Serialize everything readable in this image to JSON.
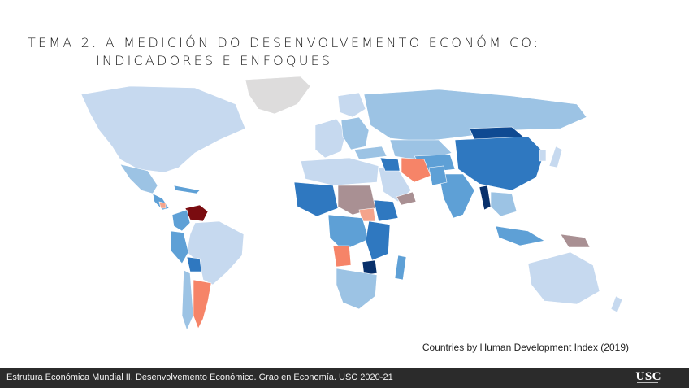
{
  "slide": {
    "title_line1": "TEMA 2. A MEDICIÓN DO DESENVOLVEMENTO ECONÓMICO:",
    "title_line2": "INDICADORES E ENFOQUES"
  },
  "map": {
    "caption": "Countries by Human Development Index (2019)",
    "colors": {
      "very_high": "#c6d9ef",
      "high": "#9cc3e4",
      "medium_high": "#5ea0d6",
      "medium": "#2f78c0",
      "low": "#0f4a92",
      "very_low": "#08306b",
      "decline_mild": "#f4a48c",
      "decline": "#f68468",
      "decline_strong": "#7a0c10",
      "no_data": "#dddcdc",
      "mixed": "#a99093"
    }
  },
  "footer": {
    "text": "Estrutura Económica Mundial II. Desenvolvemento Económico.  Grao en Economía. USC 2020-21",
    "logo": "USC"
  }
}
